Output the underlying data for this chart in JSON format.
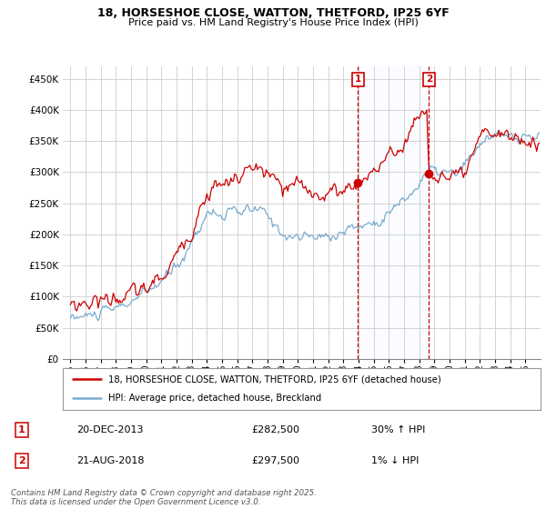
{
  "title_line1": "18, HORSESHOE CLOSE, WATTON, THETFORD, IP25 6YF",
  "title_line2": "Price paid vs. HM Land Registry's House Price Index (HPI)",
  "ylim": [
    0,
    470000
  ],
  "yticks": [
    0,
    50000,
    100000,
    150000,
    200000,
    250000,
    300000,
    350000,
    400000,
    450000
  ],
  "ytick_labels": [
    "£0",
    "£50K",
    "£100K",
    "£150K",
    "£200K",
    "£250K",
    "£300K",
    "£350K",
    "£400K",
    "£450K"
  ],
  "sale1_date_label": "20-DEC-2013",
  "sale1_price": 282500,
  "sale1_price_label": "£282,500",
  "sale1_hpi": "30% ↑ HPI",
  "sale2_date_label": "21-AUG-2018",
  "sale2_price": 297500,
  "sale2_price_label": "£297,500",
  "sale2_hpi": "1% ↓ HPI",
  "legend_line1": "18, HORSESHOE CLOSE, WATTON, THETFORD, IP25 6YF (detached house)",
  "legend_line2": "HPI: Average price, detached house, Breckland",
  "footer": "Contains HM Land Registry data © Crown copyright and database right 2025.\nThis data is licensed under the Open Government Licence v3.0.",
  "line_color_red": "#cc0000",
  "line_color_blue": "#7aabcf",
  "background_color": "#ffffff",
  "grid_color": "#cccccc",
  "sale_marker_color": "#cc0000",
  "highlight_color": "#ddeeff",
  "sale1_x": 2013.96,
  "sale2_x": 2018.64,
  "xlim_left": 1994.5,
  "xlim_right": 2026.0
}
